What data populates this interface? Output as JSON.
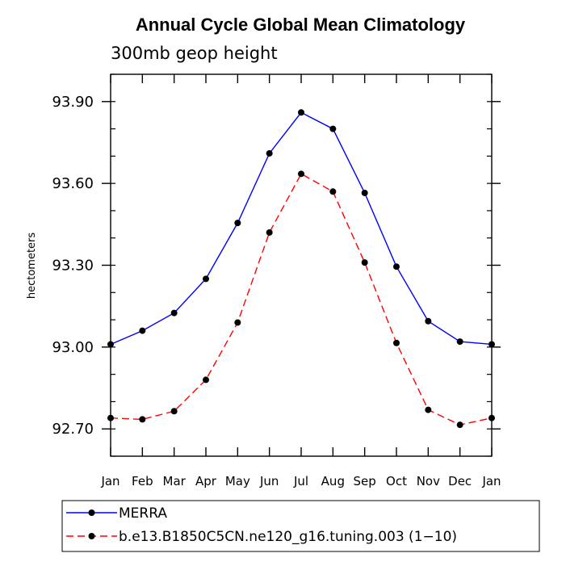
{
  "chart_data": {
    "type": "line",
    "title": "Annual Cycle Global Mean Climatology",
    "subtitle": "300mb geop height",
    "xlabel": "",
    "ylabel": "hectometers",
    "categories": [
      "Jan",
      "Feb",
      "Mar",
      "Apr",
      "May",
      "Jun",
      "Jul",
      "Aug",
      "Sep",
      "Oct",
      "Nov",
      "Dec",
      "Jan"
    ],
    "ylim": [
      92.6,
      94.0
    ],
    "yticks": [
      92.7,
      93.0,
      93.3,
      93.6,
      93.9
    ],
    "ytick_labels": [
      "92.70",
      "93.00",
      "93.30",
      "93.60",
      "93.90"
    ],
    "grid": false,
    "legend_position": "bottom",
    "series": [
      {
        "name": "MERRA",
        "color": "#0000ff",
        "line_style": "solid",
        "marker": "filled-circle",
        "values": [
          93.01,
          93.06,
          93.125,
          93.25,
          93.455,
          93.71,
          93.86,
          93.8,
          93.565,
          93.295,
          93.095,
          93.02,
          93.01
        ]
      },
      {
        "name": "b.e13.B1850C5CN.ne120_g16.tuning.003 (1−10)",
        "color": "#ff0000",
        "line_style": "dashed",
        "marker": "filled-circle",
        "values": [
          92.74,
          92.735,
          92.765,
          92.88,
          93.09,
          93.42,
          93.635,
          93.57,
          93.31,
          93.015,
          92.77,
          92.715,
          92.74
        ]
      }
    ]
  }
}
